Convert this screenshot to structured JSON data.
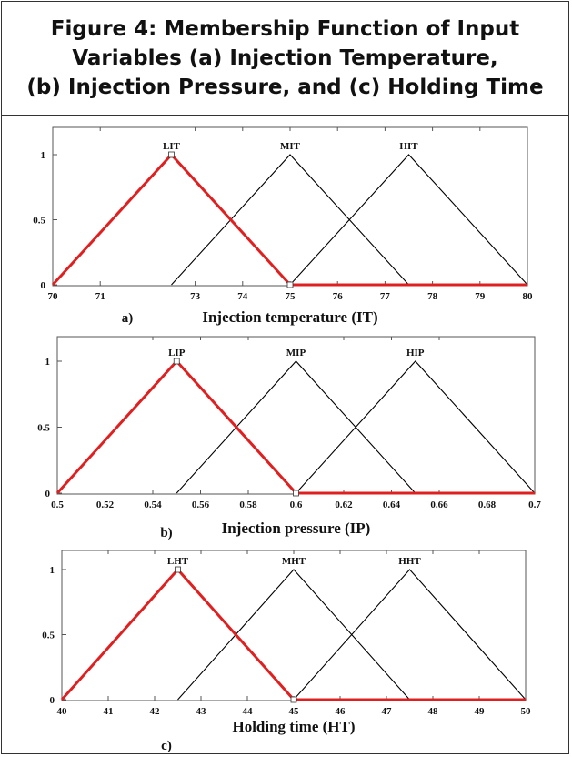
{
  "figure": {
    "title_lines": [
      "Figure 4: Membership Function of Input",
      "Variables (a) Injection Temperature,",
      "(b) Injection Pressure, and (c) Holding Time"
    ]
  },
  "colors": {
    "highlight": "#e02020",
    "line": "#000000"
  },
  "chart_data": [
    {
      "type": "line",
      "panel_label": "a)",
      "xlabel": "Injection temperature (IT)",
      "xlim": [
        70,
        80
      ],
      "ylim": [
        0,
        1
      ],
      "xtick_labels": [
        "70",
        "71",
        "73",
        "74",
        "75",
        "76",
        "77",
        "78",
        "79",
        "80"
      ],
      "ytick_labels": [
        "0",
        "0.5",
        "1"
      ],
      "series": [
        {
          "name": "LIT",
          "x": [
            70,
            72.5,
            75
          ],
          "y": [
            0,
            1,
            0
          ],
          "highlight": true
        },
        {
          "name": "MIT",
          "x": [
            72.5,
            75,
            77.5
          ],
          "y": [
            0,
            1,
            0
          ],
          "highlight": false
        },
        {
          "name": "HIT",
          "x": [
            75,
            77.5,
            80
          ],
          "y": [
            0,
            1,
            0
          ],
          "highlight": false
        }
      ]
    },
    {
      "type": "line",
      "panel_label": "b)",
      "xlabel": "Injection pressure (IP)",
      "xlim": [
        0.5,
        0.7
      ],
      "ylim": [
        0,
        1
      ],
      "xtick_labels": [
        "0.5",
        "0.52",
        "0.54",
        "0.56",
        "0.58",
        "0.6",
        "0.62",
        "0.64",
        "0.66",
        "0.68",
        "0.7"
      ],
      "ytick_labels": [
        "0",
        "0.5",
        "1"
      ],
      "series": [
        {
          "name": "LIP",
          "x": [
            0.5,
            0.55,
            0.6
          ],
          "y": [
            0,
            1,
            0
          ],
          "highlight": true
        },
        {
          "name": "MIP",
          "x": [
            0.55,
            0.6,
            0.65
          ],
          "y": [
            0,
            1,
            0
          ],
          "highlight": false
        },
        {
          "name": "HIP",
          "x": [
            0.6,
            0.65,
            0.7
          ],
          "y": [
            0,
            1,
            0
          ],
          "highlight": false
        }
      ]
    },
    {
      "type": "line",
      "panel_label": "c)",
      "xlabel": "Holding time (HT)",
      "xlim": [
        40,
        50
      ],
      "ylim": [
        0,
        1
      ],
      "xtick_labels": [
        "40",
        "41",
        "42",
        "43",
        "44",
        "45",
        "46",
        "47",
        "48",
        "49",
        "50"
      ],
      "ytick_labels": [
        "0",
        "0.5",
        "1"
      ],
      "series": [
        {
          "name": "LHT",
          "x": [
            40,
            42.5,
            45
          ],
          "y": [
            0,
            1,
            0
          ],
          "highlight": true
        },
        {
          "name": "MHT",
          "x": [
            42.5,
            45,
            47.5
          ],
          "y": [
            0,
            1,
            0
          ],
          "highlight": false
        },
        {
          "name": "HHT",
          "x": [
            45,
            47.5,
            50
          ],
          "y": [
            0,
            1,
            0
          ],
          "highlight": false
        }
      ]
    }
  ]
}
